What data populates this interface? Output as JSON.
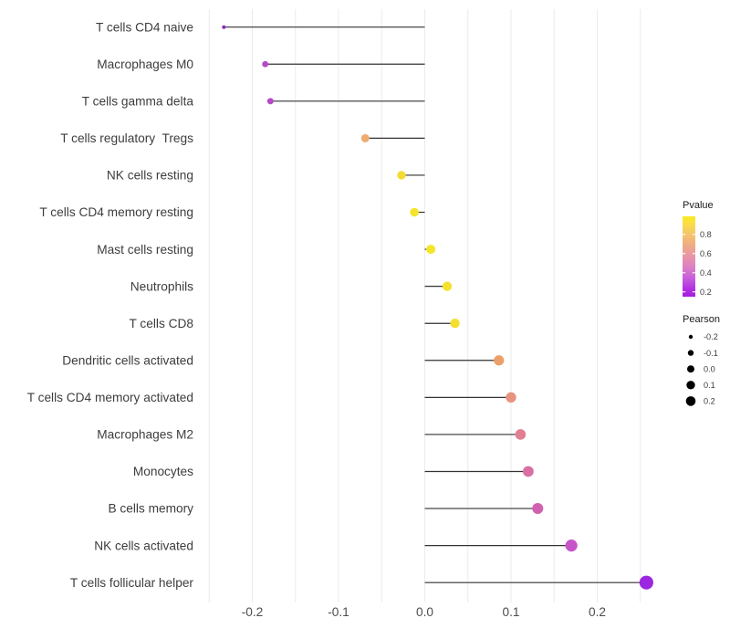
{
  "chart_data": {
    "type": "lollipop",
    "title": "",
    "xlabel": "",
    "ylabel": "",
    "x_ticks": [
      -0.2,
      -0.1,
      0.0,
      0.1,
      0.2
    ],
    "x_tick_labels": [
      "-0.2",
      "-0.1",
      "0.0",
      "0.1",
      "0.2"
    ],
    "xlim": [
      -0.255,
      0.26
    ],
    "grid_values": [
      -0.25,
      -0.2,
      -0.15,
      -0.1,
      -0.05,
      0,
      0.05,
      0.1,
      0.15,
      0.2,
      0.25
    ],
    "grid_on": true,
    "grid_color": "#EBEBEB",
    "stem_color": "#333333",
    "baseline_x": 0,
    "legend_position": "right",
    "categories": [
      "T cells CD4 naive",
      "Macrophages M0",
      "T cells gamma delta",
      "T cells regulatory  Tregs",
      "NK cells resting",
      "T cells CD4 memory resting",
      "Mast cells resting",
      "Neutrophils",
      "T cells CD8",
      "Dendritic cells activated",
      "T cells CD4 memory activated",
      "Macrophages M2",
      "Monocytes",
      "B cells memory",
      "NK cells activated",
      "T cells follicular helper"
    ],
    "series": [
      {
        "name": "Pearson",
        "points": [
          {
            "label": "T cells CD4 naive",
            "pearson": -0.233,
            "radius": 2.0,
            "color": "#8C28C0"
          },
          {
            "label": "Macrophages M0",
            "pearson": -0.185,
            "radius": 3.4,
            "color": "#B44BC6"
          },
          {
            "label": "T cells gamma delta",
            "pearson": -0.179,
            "radius": 3.5,
            "color": "#B748CA"
          },
          {
            "label": "T cells regulatory  Tregs",
            "pearson": -0.069,
            "radius": 4.5,
            "color": "#EFAC6E"
          },
          {
            "label": "NK cells resting",
            "pearson": -0.027,
            "radius": 4.7,
            "color": "#F2DC33"
          },
          {
            "label": "T cells CD4 memory resting",
            "pearson": -0.012,
            "radius": 4.8,
            "color": "#F4E42A"
          },
          {
            "label": "Mast cells resting",
            "pearson": 0.007,
            "radius": 5.0,
            "color": "#F4E527"
          },
          {
            "label": "Neutrophils",
            "pearson": 0.026,
            "radius": 5.1,
            "color": "#F3E12C"
          },
          {
            "label": "T cells CD8",
            "pearson": 0.035,
            "radius": 5.2,
            "color": "#F3DF30"
          },
          {
            "label": "Dendritic cells activated",
            "pearson": 0.086,
            "radius": 5.6,
            "color": "#EC9F68"
          },
          {
            "label": "T cells CD4 memory activated",
            "pearson": 0.1,
            "radius": 5.7,
            "color": "#E8937F"
          },
          {
            "label": "Macrophages M2",
            "pearson": 0.111,
            "radius": 5.8,
            "color": "#E17E91"
          },
          {
            "label": "Monocytes",
            "pearson": 0.12,
            "radius": 5.9,
            "color": "#DA6FA3"
          },
          {
            "label": "B cells memory",
            "pearson": 0.131,
            "radius": 6.0,
            "color": "#D161B0"
          },
          {
            "label": "NK cells activated",
            "pearson": 0.17,
            "radius": 6.6,
            "color": "#C655C8"
          },
          {
            "label": "T cells follicular helper",
            "pearson": 0.257,
            "radius": 7.6,
            "color": "#9C27E0"
          }
        ]
      }
    ]
  },
  "legend": {
    "pvalue": {
      "title": "Pvalue",
      "gradient": [
        {
          "at": 0,
          "color": "#FBE920"
        },
        {
          "at": 0.1,
          "color": "#F9DC4B"
        },
        {
          "at": 0.22,
          "color": "#F5C46B"
        },
        {
          "at": 0.36,
          "color": "#F0AB85"
        },
        {
          "at": 0.5,
          "color": "#E895A8"
        },
        {
          "at": 0.64,
          "color": "#DB7FC6"
        },
        {
          "at": 0.78,
          "color": "#C65BDD"
        },
        {
          "at": 0.9,
          "color": "#B231E2"
        },
        {
          "at": 1,
          "color": "#A51AE0"
        }
      ],
      "ticks": [
        {
          "label": "0.8",
          "t": 0.226
        },
        {
          "label": "0.6",
          "t": 0.464
        },
        {
          "label": "0.4",
          "t": 0.702
        },
        {
          "label": "0.2",
          "t": 0.94
        }
      ]
    },
    "pearson": {
      "title": "Pearson",
      "dot_color": "#000000",
      "items": [
        {
          "label": "-0.2",
          "radius": 2.2
        },
        {
          "label": "-0.1",
          "radius": 3.2
        },
        {
          "label": "0.0",
          "radius": 4.0
        },
        {
          "label": "0.1",
          "radius": 4.7
        },
        {
          "label": "0.2",
          "radius": 5.3
        }
      ]
    }
  }
}
